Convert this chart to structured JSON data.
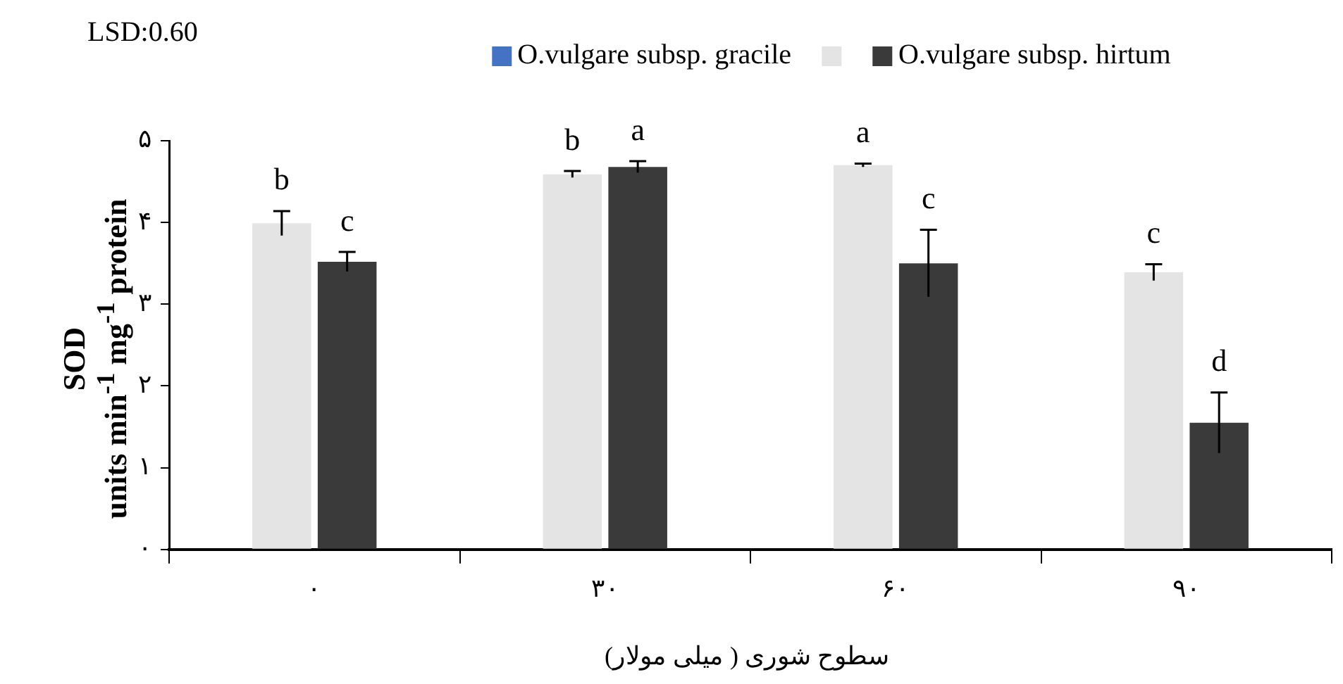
{
  "chart_data": {
    "type": "bar",
    "xlabel": "سطوح شوری ( میلی مولار)",
    "ylabel": "SOD\nunits min$^{-1}$ mg$^{-1}$ protein",
    "annotations": [
      "LSD:0.60"
    ],
    "categories": [
      "۰",
      "۳۰",
      "۶۰",
      "۹۰"
    ],
    "series": [
      {
        "name": "O.vulgare subsp. gracile",
        "color": "#4472c4",
        "values": [
          null,
          null,
          null,
          null
        ]
      },
      {
        "color": "#e4e4e4",
        "values": [
          3.99,
          4.59,
          4.7,
          3.39
        ],
        "errors": [
          0.15,
          0.04,
          0.02,
          0.1
        ],
        "value_labels": [
          "b",
          "b",
          "a",
          "c"
        ]
      },
      {
        "name": "O.vulgare subsp. hirtum",
        "color": "#3a3a3a",
        "values": [
          3.52,
          4.68,
          3.5,
          1.55
        ],
        "errors": [
          0.12,
          0.07,
          0.41,
          0.37
        ],
        "value_labels": [
          "c",
          "a",
          "c",
          "d"
        ]
      }
    ],
    "ylim": [
      0,
      5
    ],
    "yticks": [
      {
        "value": 0,
        "label": "۰"
      },
      {
        "value": 1,
        "label": "۱"
      },
      {
        "value": 2,
        "label": "۲"
      },
      {
        "value": 3,
        "label": "۳"
      },
      {
        "value": 4,
        "label": "۴"
      },
      {
        "value": 5,
        "label": "۵"
      }
    ],
    "grid": false,
    "legend": "top"
  }
}
